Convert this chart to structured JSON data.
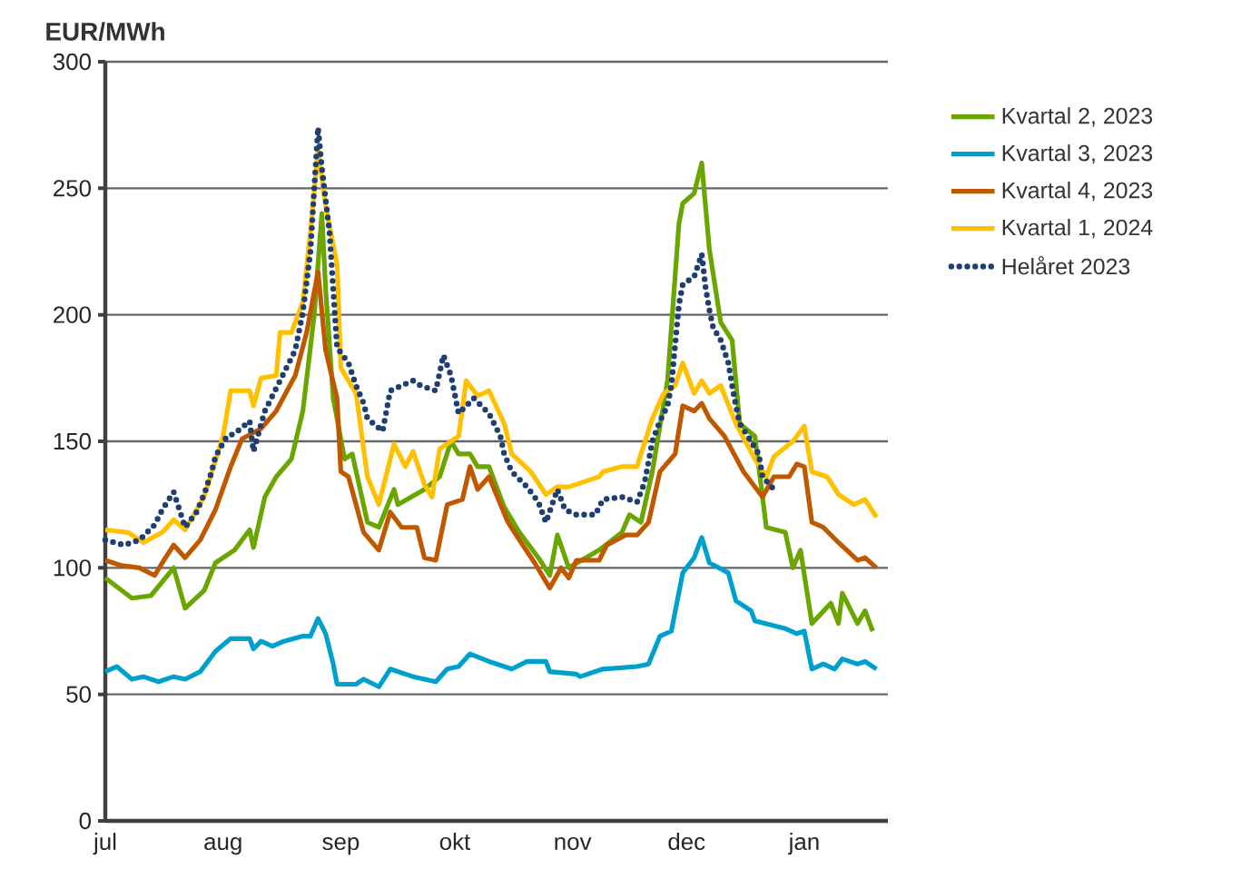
{
  "chart_data": {
    "type": "line",
    "ylabel": "EUR/MWh",
    "xlim": [
      "2022-07-01",
      "2023-01-23"
    ],
    "xticks": [
      {
        "value": "2022-07-01",
        "label": "jul"
      },
      {
        "value": "2022-08-01",
        "label": "aug"
      },
      {
        "value": "2022-09-01",
        "label": "sep"
      },
      {
        "value": "2022-10-01",
        "label": "okt"
      },
      {
        "value": "2022-11-01",
        "label": "nov"
      },
      {
        "value": "2022-12-01",
        "label": "dec"
      },
      {
        "value": "2023-01-01",
        "label": "jan"
      }
    ],
    "ylim": [
      0,
      300
    ],
    "yticks": [
      0,
      50,
      100,
      150,
      200,
      250,
      300
    ],
    "grid": "y",
    "legend": "top right",
    "series": [
      {
        "name": "Kvartal 2, 2023",
        "color": "#6aa500",
        "line_style": "solid",
        "x": [
          "2022-07-01",
          "2022-07-08",
          "2022-07-13",
          "2022-07-19",
          "2022-07-22",
          "2022-07-27",
          "2022-07-30",
          "2022-08-04",
          "2022-08-08",
          "2022-08-09",
          "2022-08-12",
          "2022-08-15",
          "2022-08-19",
          "2022-08-22",
          "2022-08-25",
          "2022-08-27",
          "2022-08-28",
          "2022-08-30",
          "2022-09-02",
          "2022-09-04",
          "2022-09-08",
          "2022-09-11",
          "2022-09-15",
          "2022-09-16",
          "2022-09-23",
          "2022-09-27",
          "2022-09-30",
          "2022-10-02",
          "2022-10-05",
          "2022-10-07",
          "2022-10-10",
          "2022-10-14",
          "2022-10-18",
          "2022-10-23",
          "2022-10-26",
          "2022-10-28",
          "2022-10-31",
          "2022-11-08",
          "2022-11-14",
          "2022-11-16",
          "2022-11-19",
          "2022-11-22",
          "2022-11-26",
          "2022-11-29",
          "2022-11-30",
          "2022-12-03",
          "2022-12-05",
          "2022-12-07",
          "2022-12-10",
          "2022-12-13",
          "2022-12-15",
          "2022-12-19",
          "2022-12-22",
          "2022-12-27",
          "2022-12-29",
          "2022-12-31",
          "2023-01-03",
          "2023-01-08",
          "2023-01-10",
          "2023-01-11",
          "2023-01-15",
          "2023-01-17",
          "2023-01-19"
        ],
        "values": [
          96,
          88,
          89,
          100,
          84,
          91,
          102,
          107,
          115,
          108,
          128,
          136,
          143,
          162,
          200,
          240,
          210,
          167,
          143,
          145,
          118,
          116,
          131,
          125,
          131,
          136,
          150,
          145,
          145,
          140,
          140,
          124,
          114,
          104,
          97,
          113,
          100,
          107,
          114,
          121,
          118,
          138,
          174,
          236,
          244,
          248,
          260,
          226,
          197,
          190,
          157,
          152,
          116,
          114,
          100,
          107,
          78,
          86,
          78,
          90,
          78,
          83,
          75
        ]
      },
      {
        "name": "Kvartal 3, 2023",
        "color": "#00a0cc",
        "line_style": "solid",
        "x": [
          "2022-07-01",
          "2022-07-04",
          "2022-07-08",
          "2022-07-11",
          "2022-07-15",
          "2022-07-19",
          "2022-07-22",
          "2022-07-26",
          "2022-07-30",
          "2022-08-03",
          "2022-08-08",
          "2022-08-09",
          "2022-08-11",
          "2022-08-14",
          "2022-08-17",
          "2022-08-22",
          "2022-08-24",
          "2022-08-26",
          "2022-08-28",
          "2022-08-30",
          "2022-08-31",
          "2022-09-05",
          "2022-09-07",
          "2022-09-11",
          "2022-09-14",
          "2022-09-20",
          "2022-09-26",
          "2022-09-29",
          "2022-10-02",
          "2022-10-05",
          "2022-10-10",
          "2022-10-16",
          "2022-10-20",
          "2022-10-25",
          "2022-10-26",
          "2022-11-02",
          "2022-11-03",
          "2022-11-09",
          "2022-11-18",
          "2022-11-21",
          "2022-11-24",
          "2022-11-27",
          "2022-11-30",
          "2022-12-03",
          "2022-12-05",
          "2022-12-07",
          "2022-12-12",
          "2022-12-14",
          "2022-12-18",
          "2022-12-19",
          "2022-12-27",
          "2022-12-30",
          "2023-01-01",
          "2023-01-03",
          "2023-01-06",
          "2023-01-09",
          "2023-01-11",
          "2023-01-15",
          "2023-01-17",
          "2023-01-20"
        ],
        "values": [
          59,
          61,
          56,
          57,
          55,
          57,
          56,
          59,
          67,
          72,
          72,
          68,
          71,
          69,
          71,
          73,
          73,
          80,
          74,
          62,
          54,
          54,
          56,
          53,
          60,
          57,
          55,
          60,
          61,
          66,
          63,
          60,
          63,
          63,
          59,
          58,
          57,
          60,
          61,
          62,
          73,
          75,
          98,
          104,
          112,
          102,
          98,
          87,
          83,
          79,
          76,
          74,
          75,
          60,
          62,
          60,
          64,
          62,
          63,
          60
        ]
      },
      {
        "name": "Kvartal 4, 2023",
        "color": "#c05800",
        "line_style": "solid",
        "x": [
          "2022-07-01",
          "2022-07-05",
          "2022-07-10",
          "2022-07-14",
          "2022-07-16",
          "2022-07-19",
          "2022-07-22",
          "2022-07-26",
          "2022-07-30",
          "2022-08-03",
          "2022-08-06",
          "2022-08-11",
          "2022-08-15",
          "2022-08-20",
          "2022-08-23",
          "2022-08-26",
          "2022-08-28",
          "2022-08-31",
          "2022-09-01",
          "2022-09-03",
          "2022-09-07",
          "2022-09-11",
          "2022-09-14",
          "2022-09-17",
          "2022-09-21",
          "2022-09-23",
          "2022-09-26",
          "2022-09-29",
          "2022-10-03",
          "2022-10-05",
          "2022-10-07",
          "2022-10-10",
          "2022-10-15",
          "2022-10-18",
          "2022-10-22",
          "2022-10-26",
          "2022-10-29",
          "2022-10-31",
          "2022-11-02",
          "2022-11-08",
          "2022-11-10",
          "2022-11-15",
          "2022-11-18",
          "2022-11-21",
          "2022-11-24",
          "2022-11-28",
          "2022-11-30",
          "2022-12-03",
          "2022-12-05",
          "2022-12-07",
          "2022-12-11",
          "2022-12-16",
          "2022-12-21",
          "2022-12-24",
          "2022-12-28",
          "2022-12-30",
          "2023-01-01",
          "2023-01-03",
          "2023-01-06",
          "2023-01-10",
          "2023-01-15",
          "2023-01-17",
          "2023-01-20"
        ],
        "values": [
          103,
          101,
          100,
          97,
          102,
          109,
          104,
          111,
          123,
          140,
          151,
          155,
          162,
          176,
          193,
          217,
          186,
          167,
          138,
          136,
          114,
          107,
          122,
          116,
          116,
          104,
          103,
          125,
          127,
          140,
          131,
          136,
          118,
          111,
          102,
          92,
          100,
          96,
          103,
          103,
          109,
          113,
          113,
          118,
          138,
          145,
          164,
          162,
          165,
          159,
          152,
          138,
          128,
          136,
          136,
          141,
          140,
          118,
          116,
          110,
          103,
          104,
          100
        ]
      },
      {
        "name": "Kvartal 1, 2024",
        "color": "#ffc000",
        "line_style": "solid",
        "x": [
          "2022-07-01",
          "2022-07-07",
          "2022-07-11",
          "2022-07-16",
          "2022-07-19",
          "2022-07-22",
          "2022-07-27",
          "2022-08-01",
          "2022-08-03",
          "2022-08-08",
          "2022-08-09",
          "2022-08-11",
          "2022-08-15",
          "2022-08-16",
          "2022-08-19",
          "2022-08-22",
          "2022-08-24",
          "2022-08-26",
          "2022-08-28",
          "2022-08-31",
          "2022-09-01",
          "2022-09-05",
          "2022-09-08",
          "2022-09-11",
          "2022-09-15",
          "2022-09-18",
          "2022-09-20",
          "2022-09-23",
          "2022-09-25",
          "2022-09-27",
          "2022-10-02",
          "2022-10-04",
          "2022-10-07",
          "2022-10-10",
          "2022-10-14",
          "2022-10-16",
          "2022-10-21",
          "2022-10-25",
          "2022-10-28",
          "2022-10-31",
          "2022-11-02",
          "2022-11-08",
          "2022-11-09",
          "2022-11-14",
          "2022-11-18",
          "2022-11-19",
          "2022-11-22",
          "2022-11-25",
          "2022-11-28",
          "2022-11-30",
          "2022-12-03",
          "2022-12-05",
          "2022-12-07",
          "2022-12-10",
          "2022-12-14",
          "2022-12-19",
          "2022-12-22",
          "2022-12-24",
          "2022-12-29",
          "2023-01-01",
          "2023-01-03",
          "2023-01-07",
          "2023-01-10",
          "2023-01-14",
          "2023-01-17",
          "2023-01-20"
        ],
        "values": [
          115,
          114,
          110,
          114,
          119,
          115,
          128,
          152,
          170,
          170,
          164,
          175,
          176,
          193,
          193,
          205,
          233,
          265,
          243,
          220,
          179,
          169,
          136,
          125,
          149,
          140,
          146,
          133,
          128,
          147,
          152,
          174,
          168,
          170,
          157,
          145,
          138,
          129,
          132,
          132,
          133,
          136,
          138,
          140,
          140,
          145,
          159,
          169,
          172,
          181,
          169,
          174,
          169,
          172,
          157,
          143,
          136,
          144,
          150,
          156,
          138,
          136,
          129,
          125,
          127,
          120
        ]
      },
      {
        "name": "Helåret 2023",
        "color": "#1f3f73",
        "line_style": "dotted",
        "x": [
          "2022-07-01",
          "2022-07-06",
          "2022-07-10",
          "2022-07-14",
          "2022-07-16",
          "2022-07-19",
          "2022-07-22",
          "2022-07-25",
          "2022-07-27",
          "2022-07-29",
          "2022-07-30",
          "2022-08-02",
          "2022-08-04",
          "2022-08-08",
          "2022-08-09",
          "2022-08-12",
          "2022-08-16",
          "2022-08-20",
          "2022-08-22",
          "2022-08-24",
          "2022-08-25",
          "2022-08-26",
          "2022-08-27",
          "2022-08-29",
          "2022-08-30",
          "2022-08-31",
          "2022-09-03",
          "2022-09-05",
          "2022-09-07",
          "2022-09-08",
          "2022-09-12",
          "2022-09-14",
          "2022-09-20",
          "2022-09-22",
          "2022-09-26",
          "2022-09-28",
          "2022-09-30",
          "2022-10-02",
          "2022-10-06",
          "2022-10-10",
          "2022-10-13",
          "2022-10-14",
          "2022-10-16",
          "2022-10-20",
          "2022-10-23",
          "2022-10-25",
          "2022-10-28",
          "2022-10-30",
          "2022-11-02",
          "2022-11-07",
          "2022-11-09",
          "2022-11-14",
          "2022-11-18",
          "2022-11-20",
          "2022-11-22",
          "2022-11-24",
          "2022-11-26",
          "2022-11-27",
          "2022-11-28",
          "2022-11-29",
          "2022-11-30",
          "2022-12-03",
          "2022-12-05",
          "2022-12-06",
          "2022-12-07",
          "2022-12-08",
          "2022-12-10",
          "2022-12-12",
          "2022-12-13",
          "2022-12-14",
          "2022-12-15",
          "2022-12-18",
          "2022-12-20",
          "2022-12-21",
          "2022-12-24"
        ],
        "values": [
          111,
          109,
          111,
          117,
          123,
          130,
          116,
          122,
          129,
          138,
          144,
          152,
          153,
          158,
          146,
          162,
          174,
          186,
          201,
          225,
          250,
          274,
          258,
          233,
          210,
          187,
          181,
          172,
          165,
          159,
          154,
          170,
          174,
          172,
          170,
          184,
          176,
          161,
          167,
          161,
          152,
          145,
          138,
          132,
          126,
          118,
          131,
          123,
          121,
          121,
          127,
          128,
          126,
          134,
          150,
          158,
          164,
          172,
          188,
          204,
          212,
          215,
          224,
          211,
          202,
          195,
          190,
          181,
          172,
          164,
          157,
          150,
          145,
          136,
          131
        ]
      }
    ]
  }
}
